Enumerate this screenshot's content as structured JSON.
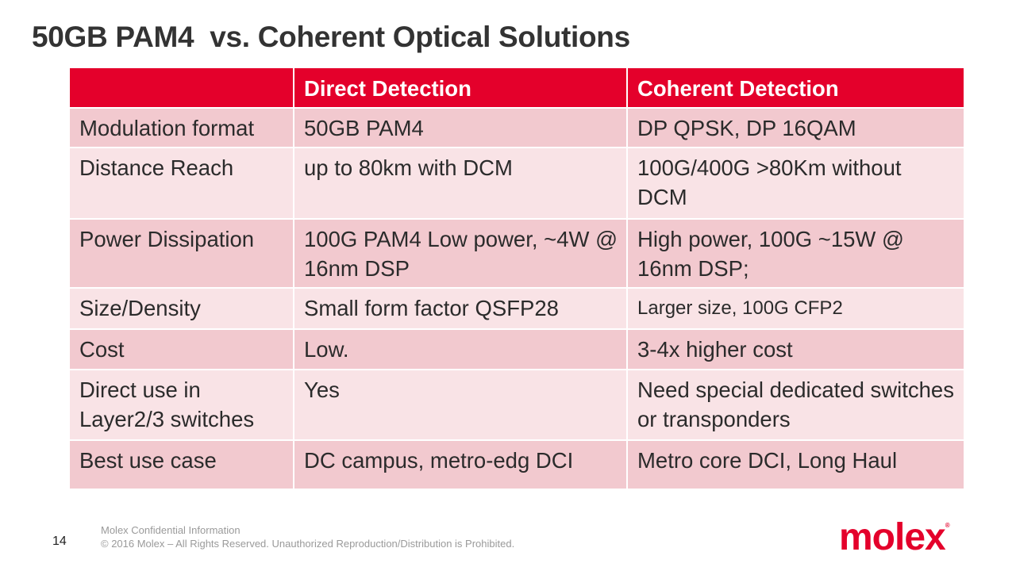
{
  "slide": {
    "title": "50GB PAM4  vs. Coherent Optical Solutions",
    "page_number": "14",
    "footer_line1": "Molex Confidential Information",
    "footer_line2": "© 2016 Molex – All Rights Reserved. Unauthorized Reproduction/Distribution is Prohibited.",
    "logo_text": "molex",
    "logo_mark": "®",
    "brand_color": "#E4002B"
  },
  "table": {
    "headers": [
      "",
      "Direct Detection",
      "Coherent Detection"
    ],
    "rows": [
      {
        "label": "Modulation format",
        "direct": "50GB PAM4",
        "coherent": "DP QPSK, DP 16QAM"
      },
      {
        "label": "Distance Reach",
        "direct": "up to 80km with DCM",
        "coherent": "100G/400G >80Km without DCM"
      },
      {
        "label": "Power Dissipation",
        "direct": "100G PAM4 Low power, ~4W @ 16nm DSP",
        "coherent": "High power, 100G ~15W @ 16nm DSP;"
      },
      {
        "label": "Size/Density",
        "direct": "Small form factor QSFP28",
        "coherent": "Larger size, 100G CFP2"
      },
      {
        "label": "Cost",
        "direct": "Low.",
        "coherent": "3-4x higher cost"
      },
      {
        "label": "Direct use in Layer2/3 switches",
        "direct": "Yes",
        "coherent": "Need special dedicated switches or transponders"
      },
      {
        "label": "Best use case",
        "direct": "DC campus, metro-edg DCI",
        "coherent": "Metro core DCI, Long Haul"
      }
    ]
  }
}
